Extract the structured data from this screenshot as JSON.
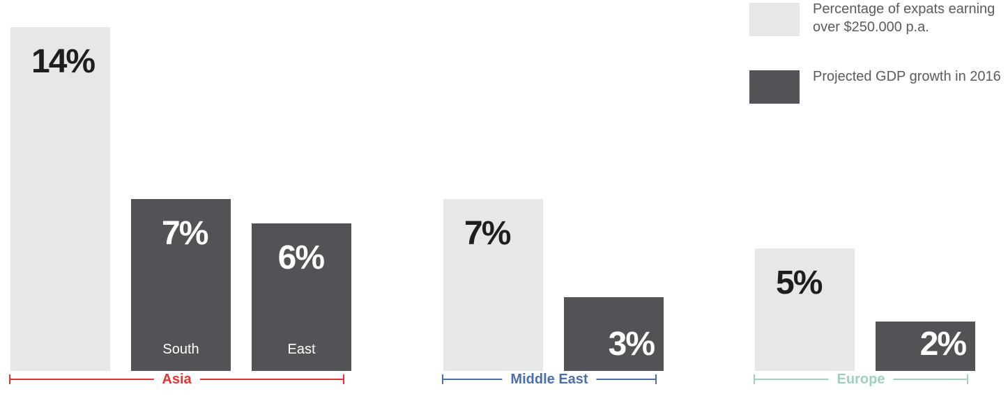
{
  "colors": {
    "expats": "#e6e7e9",
    "gdp": "#525357",
    "asia": "#e8322e",
    "middle_east": "#4a6fb0",
    "europe": "#9fcfbf"
  },
  "legend": {
    "items": [
      {
        "key": "expats",
        "label": "Percentage of expats earning over $250.000 p.a."
      },
      {
        "key": "gdp",
        "label": "Projected GDP growth in 2016"
      }
    ]
  },
  "chart_data": {
    "type": "bar",
    "title": "",
    "xlabel": "",
    "ylabel": "",
    "ylim": [
      0,
      14
    ],
    "grid": false,
    "legend_position": "top-right",
    "series": [
      {
        "name": "Percentage of expats earning over $250.000 p.a.",
        "key": "expats"
      },
      {
        "name": "Projected GDP growth in 2016",
        "key": "gdp"
      }
    ],
    "groups": [
      {
        "region": "Asia",
        "color_key": "asia",
        "bars": [
          {
            "series": "expats",
            "value": 14,
            "label": "14%",
            "sublabel": ""
          },
          {
            "series": "gdp",
            "value": 7,
            "label": "7%",
            "sublabel": "South"
          },
          {
            "series": "gdp",
            "value": 6,
            "label": "6%",
            "sublabel": "East"
          }
        ]
      },
      {
        "region": "Middle East",
        "color_key": "middle_east",
        "bars": [
          {
            "series": "expats",
            "value": 7,
            "label": "7%",
            "sublabel": ""
          },
          {
            "series": "gdp",
            "value": 3,
            "label": "3%",
            "sublabel": ""
          }
        ]
      },
      {
        "region": "Europe",
        "color_key": "europe",
        "bars": [
          {
            "series": "expats",
            "value": 5,
            "label": "5%",
            "sublabel": ""
          },
          {
            "series": "gdp",
            "value": 2,
            "label": "2%",
            "sublabel": ""
          }
        ]
      }
    ]
  }
}
